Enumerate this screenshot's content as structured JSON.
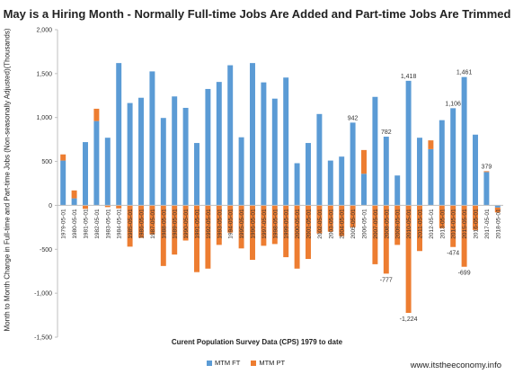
{
  "chart_data": {
    "type": "bar",
    "stacked": true,
    "title": "May is a Hiring Month - Normally Full-time Jobs Are Added and Part-time Jobs Are Trimmed",
    "xlabel": "Curent Population Survey Data (CPS) 1979 to date",
    "ylabel": "Month to Month Change in Full-time and Part-time Jobs (Non-seasonally Adjusted)(Thousands)",
    "ylim": [
      -1500,
      2000
    ],
    "yticks": [
      -1500,
      -1000,
      -500,
      0,
      500,
      1000,
      1500,
      2000
    ],
    "ytick_labels": [
      "-1,500",
      "-1,000",
      "-500",
      "0",
      "500",
      "1,000",
      "1,500",
      "2,000"
    ],
    "grid": false,
    "legend_position": "bottom",
    "categories": [
      "1979-05-01",
      "1980-05-01",
      "1981-05-01",
      "1982-05-01",
      "1983-05-01",
      "1984-05-01",
      "1985-05-01",
      "1986-05-01",
      "1987-05-01",
      "1988-05-01",
      "1989-05-01",
      "1990-05-01",
      "1991-05-01",
      "1992-05-01",
      "1993-05-01",
      "1994-05-01",
      "1995-05-01",
      "1996-05-01",
      "1997-05-01",
      "1998-05-01",
      "1999-05-01",
      "2000-05-01",
      "2001-05-01",
      "2002-05-01",
      "2003-05-01",
      "2004-05-01",
      "2005-05-01",
      "2006-05-01",
      "2007-05-01",
      "2008-05-01",
      "2009-05-01",
      "2010-05-01",
      "2011-05-01",
      "2012-05-01",
      "2013-05-01",
      "2014-05-01",
      "2015-05-01",
      "2016-05-01",
      "2017-05-01",
      "2018-05-01"
    ],
    "series": [
      {
        "name": "MTM FT",
        "color": "#5b9bd5",
        "values": [
          510,
          80,
          720,
          960,
          770,
          1620,
          1165,
          1225,
          1525,
          995,
          1240,
          1110,
          710,
          1325,
          1405,
          1595,
          775,
          1620,
          1400,
          1215,
          1455,
          480,
          710,
          1040,
          510,
          555,
          942,
          360,
          1235,
          782,
          340,
          1418,
          770,
          640,
          970,
          1106,
          1461,
          805,
          379,
          -25
        ]
      },
      {
        "name": "MTM PT",
        "color": "#ed7d31",
        "values": [
          70,
          90,
          -40,
          140,
          -20,
          -35,
          -470,
          -370,
          -330,
          -690,
          -560,
          -400,
          -760,
          -720,
          -450,
          -310,
          -490,
          -620,
          -460,
          -440,
          -590,
          -720,
          -610,
          -320,
          -300,
          -350,
          -250,
          270,
          -670,
          -777,
          -450,
          -1224,
          -520,
          100,
          -260,
          -474,
          -699,
          -280,
          10,
          -55
        ]
      }
    ],
    "data_labels": [
      {
        "category": "2005-05-01",
        "text": "942"
      },
      {
        "category": "2008-05-01",
        "text": "782"
      },
      {
        "category": "2008-05-01",
        "text": "-777"
      },
      {
        "category": "2010-05-01",
        "text": "1,418"
      },
      {
        "category": "2010-05-01",
        "text": "-1,224"
      },
      {
        "category": "2014-05-01",
        "text": "1,106"
      },
      {
        "category": "2014-05-01",
        "text": "-474"
      },
      {
        "category": "2015-05-01",
        "text": "1,461"
      },
      {
        "category": "2015-05-01",
        "text": "-699"
      },
      {
        "category": "2017-05-01",
        "text": "379"
      }
    ]
  },
  "legend": [
    {
      "label": "MTM FT",
      "color": "#5b9bd5"
    },
    {
      "label": "MTM PT",
      "color": "#ed7d31"
    }
  ],
  "footer": "www.itstheeconomy.info"
}
